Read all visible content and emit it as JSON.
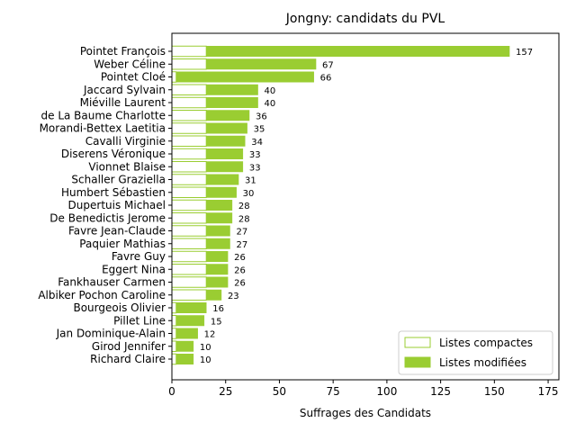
{
  "chart_data": {
    "type": "bar",
    "orientation": "horizontal",
    "stacked": true,
    "title": "Jongny: candidats du PVL",
    "xlabel": "Suffrages des Candidats",
    "ylabel": "",
    "xlim": [
      0,
      180
    ],
    "x_ticks": [
      0,
      25,
      50,
      75,
      100,
      125,
      150,
      175
    ],
    "grid": false,
    "legend_position": "lower right",
    "colors": {
      "bar": "#9acd32",
      "edge": "#9acd32",
      "compact_fill": "#ffffff"
    },
    "categories": [
      "Pointet François",
      "Weber Céline",
      "Pointet Cloé",
      "Jaccard Sylvain",
      "Miéville Laurent",
      "de La Baume Charlotte",
      "Morandi-Bettex Laetitia",
      "Cavalli Virginie",
      "Diserens Véronique",
      "Vionnet Blaise",
      "Schaller Graziella",
      "Humbert Sébastien",
      "Dupertuis Michael",
      "De Benedictis Jerome",
      "Favre Jean-Claude",
      "Paquier Mathias",
      "Favre Guy",
      "Eggert Nina",
      "Fankhauser Carmen",
      "Albiker Pochon Caroline",
      "Bourgeois Olivier",
      "Pillet Line",
      "Jan Dominique-Alain",
      "Girod Jennifer",
      "Richard Claire"
    ],
    "totals": [
      157,
      67,
      66,
      40,
      40,
      36,
      35,
      34,
      33,
      33,
      31,
      30,
      28,
      28,
      27,
      27,
      26,
      26,
      26,
      23,
      16,
      15,
      12,
      10,
      10
    ],
    "series": [
      {
        "name": "Listes compactes",
        "values": [
          16,
          16,
          2,
          16,
          16,
          16,
          16,
          16,
          16,
          16,
          16,
          16,
          16,
          16,
          16,
          16,
          16,
          16,
          16,
          16,
          2,
          2,
          2,
          2,
          2
        ]
      },
      {
        "name": "Listes modifiées",
        "values": [
          141,
          51,
          64,
          24,
          24,
          20,
          19,
          18,
          17,
          17,
          15,
          14,
          12,
          12,
          11,
          11,
          10,
          10,
          10,
          7,
          14,
          13,
          10,
          8,
          8
        ]
      }
    ]
  }
}
